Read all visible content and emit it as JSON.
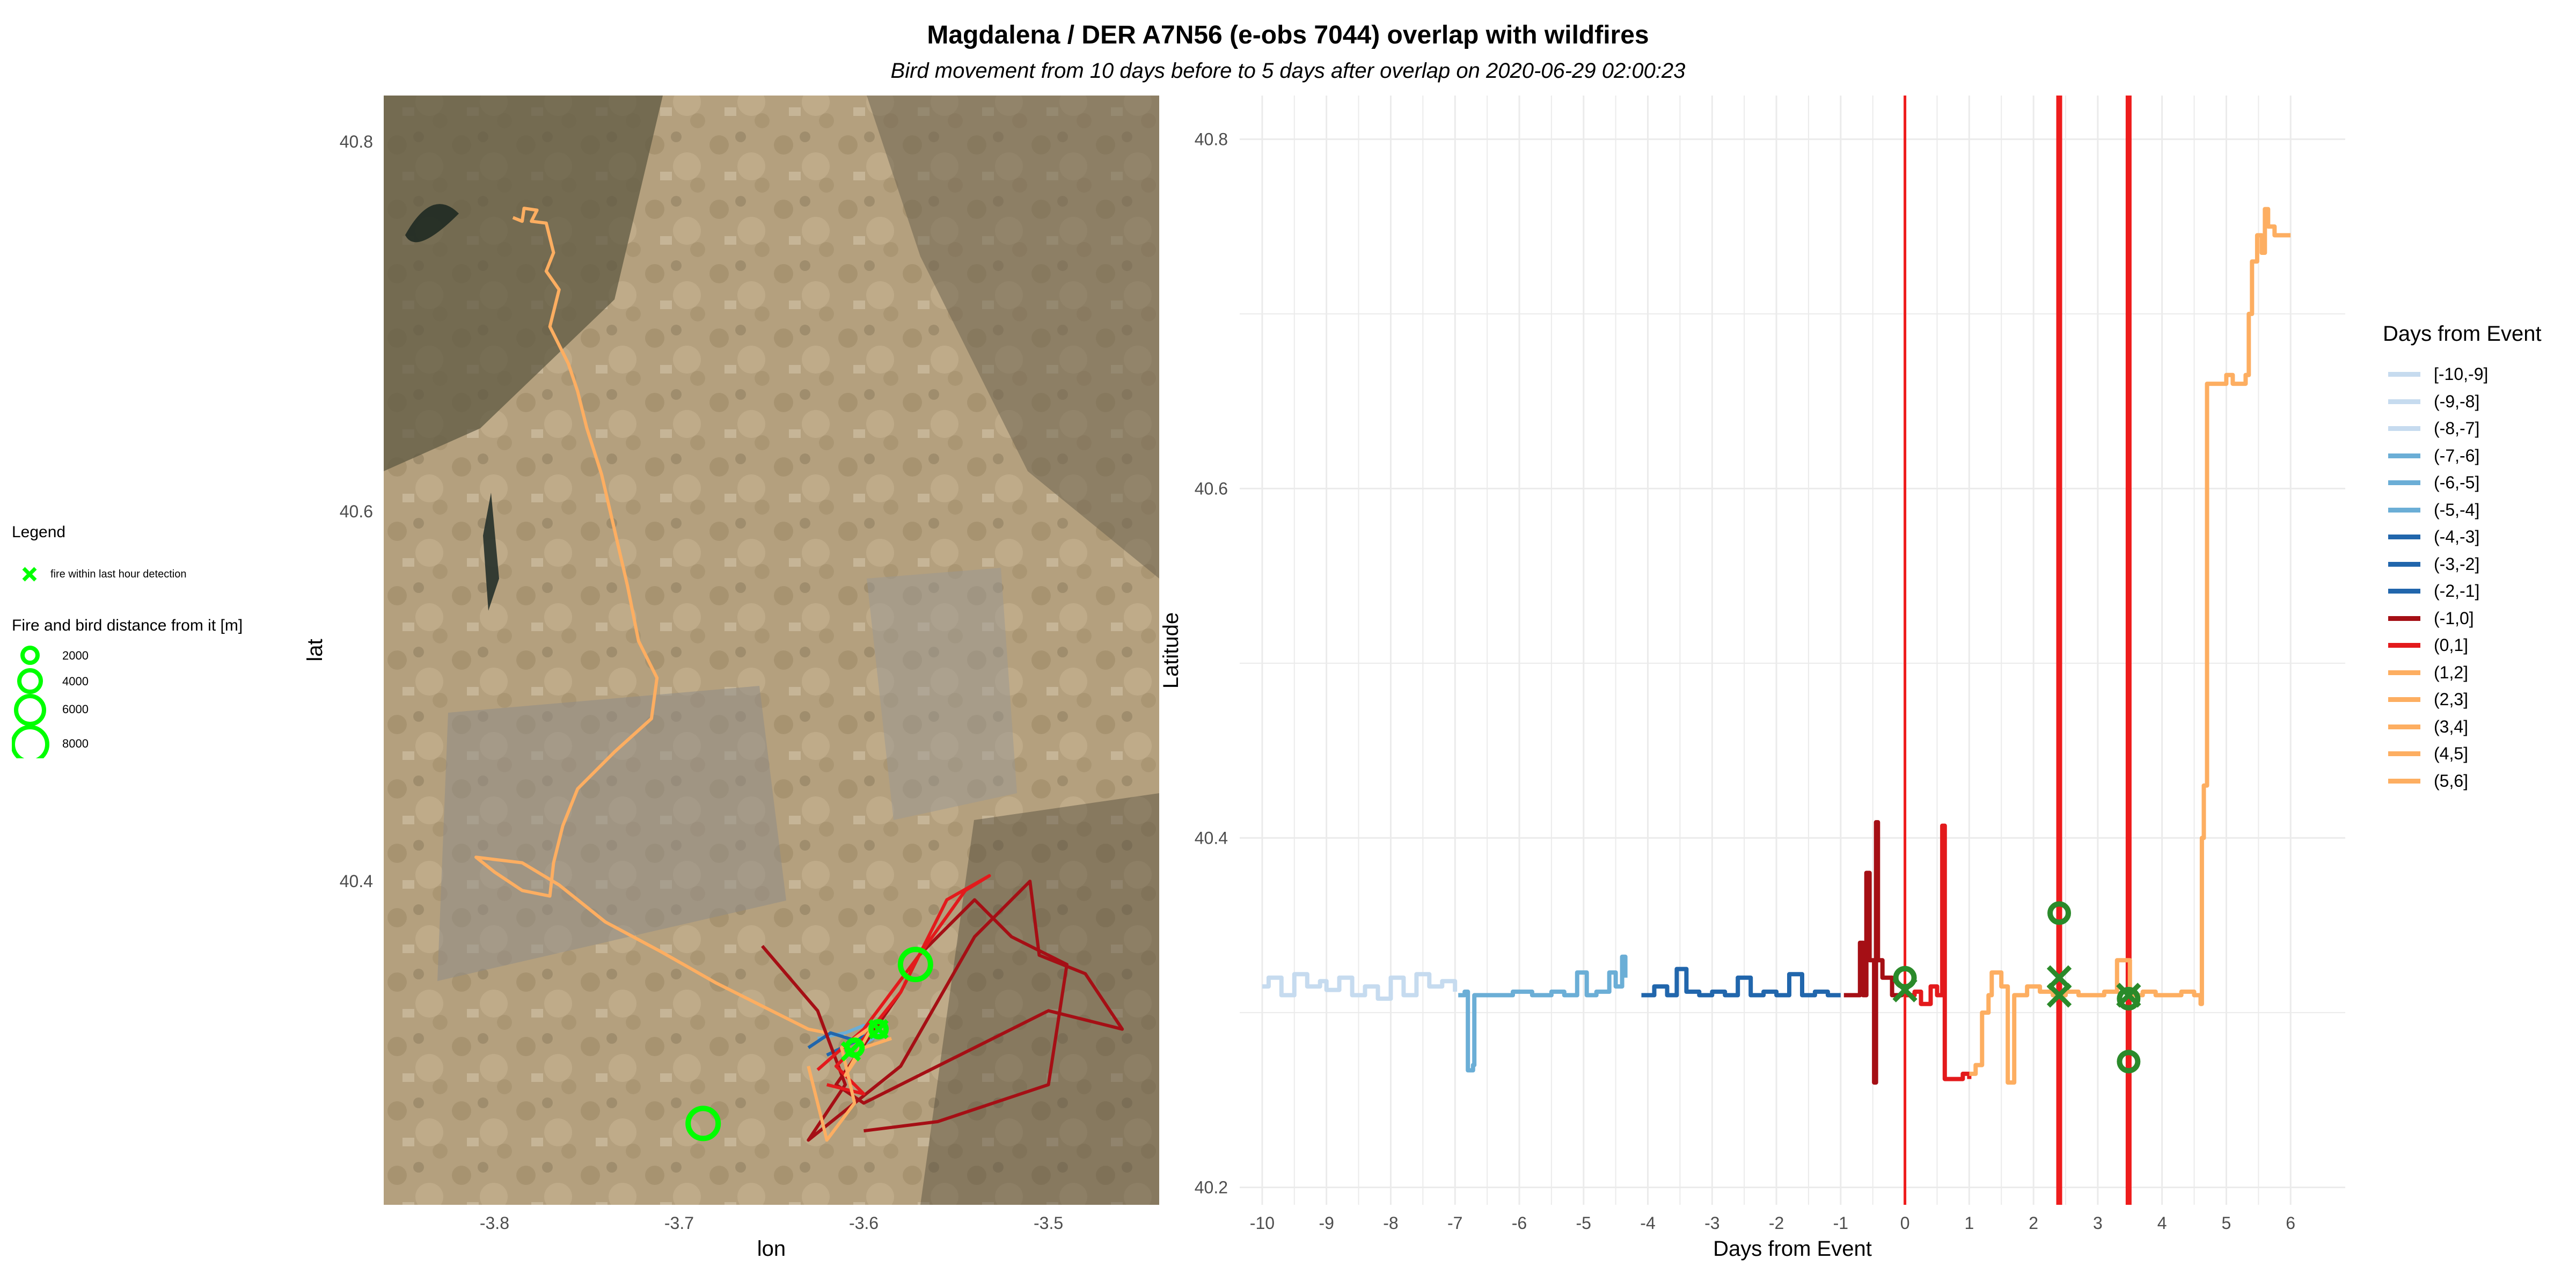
{
  "title": "Magdalena / DER A7N56 (e-obs 7044) overlap with wildfires",
  "subtitle": "Bird movement from 10 days before to 5 days after overlap on 2020-06-29 02:00:23",
  "map_legend": {
    "heading": "Legend",
    "fire_label": "fire within last hour detection",
    "size_title": "Fire and bird distance from it [m]",
    "sizes": [
      "2000",
      "4000",
      "6000",
      "8000"
    ]
  },
  "day_legend": {
    "heading": "Days from Event",
    "items": [
      {
        "label": "[-10,-9]",
        "color": "#c6dbef"
      },
      {
        "label": "(-9,-8]",
        "color": "#c6dbef"
      },
      {
        "label": "(-8,-7]",
        "color": "#c6dbef"
      },
      {
        "label": "(-7,-6]",
        "color": "#6baed6"
      },
      {
        "label": "(-6,-5]",
        "color": "#6baed6"
      },
      {
        "label": "(-5,-4]",
        "color": "#6baed6"
      },
      {
        "label": "(-4,-3]",
        "color": "#2166ac"
      },
      {
        "label": "(-3,-2]",
        "color": "#2166ac"
      },
      {
        "label": "(-2,-1]",
        "color": "#2166ac"
      },
      {
        "label": "(-1,0]",
        "color": "#a50f15"
      },
      {
        "label": "(0,1]",
        "color": "#e31a1c"
      },
      {
        "label": "(1,2]",
        "color": "#fdae61"
      },
      {
        "label": "(2,3]",
        "color": "#fdae61"
      },
      {
        "label": "(3,4]",
        "color": "#fdae61"
      },
      {
        "label": "(4,5]",
        "color": "#fdae61"
      },
      {
        "label": "(5,6]",
        "color": "#fdae61"
      }
    ]
  },
  "chart_data": [
    {
      "type": "scatter",
      "subtype": "map-track",
      "xlabel": "lon",
      "ylabel": "lat",
      "xlim": [
        -3.86,
        -3.44
      ],
      "ylim": [
        40.225,
        40.825
      ],
      "xticks": [
        "-3.8",
        "-3.7",
        "-3.6",
        "-3.5"
      ],
      "yticks": [
        "40.4",
        "40.6",
        "40.8"
      ],
      "background": "satellite imagery",
      "fire_color": "#00ff00",
      "segments": [
        {
          "color": "#fdae61",
          "points": [
            [
              -3.79,
              40.759
            ],
            [
              -3.785,
              40.757
            ],
            [
              -3.784,
              40.764
            ],
            [
              -3.777,
              40.763
            ],
            [
              -3.78,
              40.757
            ],
            [
              -3.772,
              40.756
            ],
            [
              -3.768,
              40.74
            ],
            [
              -3.772,
              40.73
            ],
            [
              -3.765,
              40.72
            ],
            [
              -3.77,
              40.7
            ],
            [
              -3.76,
              40.68
            ],
            [
              -3.755,
              40.665
            ],
            [
              -3.75,
              40.645
            ],
            [
              -3.742,
              40.62
            ],
            [
              -3.735,
              40.59
            ],
            [
              -3.728,
              40.56
            ],
            [
              -3.722,
              40.53
            ],
            [
              -3.712,
              40.51
            ],
            [
              -3.715,
              40.488
            ],
            [
              -3.735,
              40.47
            ],
            [
              -3.755,
              40.45
            ],
            [
              -3.763,
              40.43
            ],
            [
              -3.768,
              40.41
            ],
            [
              -3.77,
              40.392
            ],
            [
              -3.785,
              40.395
            ],
            [
              -3.8,
              40.405
            ],
            [
              -3.81,
              40.413
            ],
            [
              -3.785,
              40.41
            ],
            [
              -3.765,
              40.398
            ],
            [
              -3.74,
              40.378
            ],
            [
              -3.71,
              40.362
            ],
            [
              -3.68,
              40.345
            ],
            [
              -3.65,
              40.33
            ],
            [
              -3.63,
              40.32
            ],
            [
              -3.61,
              40.316
            ]
          ]
        },
        {
          "color": "#6baed6",
          "points": [
            [
              -3.625,
              40.315
            ],
            [
              -3.61,
              40.318
            ],
            [
              -3.6,
              40.322
            ],
            [
              -3.59,
              40.318
            ],
            [
              -3.6,
              40.312
            ]
          ]
        },
        {
          "color": "#2166ac",
          "points": [
            [
              -3.63,
              40.31
            ],
            [
              -3.618,
              40.318
            ],
            [
              -3.605,
              40.314
            ],
            [
              -3.595,
              40.318
            ],
            [
              -3.62,
              40.306
            ]
          ]
        },
        {
          "color": "#a50f15",
          "points": [
            [
              -3.655,
              40.365
            ],
            [
              -3.625,
              40.33
            ],
            [
              -3.61,
              40.29
            ],
            [
              -3.63,
              40.26
            ],
            [
              -3.58,
              40.3
            ],
            [
              -3.54,
              40.37
            ],
            [
              -3.51,
              40.4
            ],
            [
              -3.505,
              40.36
            ],
            [
              -3.48,
              40.35
            ],
            [
              -3.46,
              40.32
            ],
            [
              -3.5,
              40.33
            ],
            [
              -3.55,
              40.305
            ],
            [
              -3.6,
              40.28
            ],
            [
              -3.615,
              40.29
            ],
            [
              -3.58,
              40.34
            ],
            [
              -3.57,
              40.36
            ],
            [
              -3.54,
              40.39
            ],
            [
              -3.52,
              40.37
            ],
            [
              -3.49,
              40.355
            ],
            [
              -3.5,
              40.29
            ],
            [
              -3.56,
              40.27
            ],
            [
              -3.6,
              40.265
            ]
          ]
        },
        {
          "color": "#e31a1c",
          "points": [
            [
              -3.625,
              40.298
            ],
            [
              -3.6,
              40.32
            ],
            [
              -3.57,
              40.36
            ],
            [
              -3.545,
              40.395
            ],
            [
              -3.532,
              40.403
            ],
            [
              -3.555,
              40.39
            ],
            [
              -3.58,
              40.34
            ],
            [
              -3.6,
              40.315
            ],
            [
              -3.615,
              40.3
            ],
            [
              -3.6,
              40.285
            ],
            [
              -3.62,
              40.29
            ]
          ]
        },
        {
          "color": "#fdae61",
          "points": [
            [
              -3.63,
              40.3
            ],
            [
              -3.62,
              40.26
            ],
            [
              -3.605,
              40.28
            ],
            [
              -3.612,
              40.31
            ],
            [
              -3.595,
              40.322
            ],
            [
              -3.61,
              40.295
            ],
            [
              -3.6,
              40.31
            ],
            [
              -3.585,
              40.315
            ]
          ]
        }
      ],
      "fires": [
        {
          "lon": -3.607,
          "lat": 40.308,
          "shape": "x"
        },
        {
          "lon": -3.592,
          "lat": 40.32,
          "shape": "x"
        },
        {
          "lon": -3.572,
          "lat": 40.355,
          "shape": "circle",
          "size": 2
        },
        {
          "lon": -3.687,
          "lat": 40.269,
          "shape": "circle",
          "size": 2
        },
        {
          "lon": -3.605,
          "lat": 40.31,
          "shape": "circle",
          "size": 1
        },
        {
          "lon": -3.592,
          "lat": 40.32,
          "shape": "circle",
          "size": 1
        }
      ]
    },
    {
      "type": "line",
      "xlabel": "Days from Event",
      "ylabel": "Latitude",
      "xlim": [
        -10.35,
        6.85
      ],
      "ylim": [
        40.19,
        40.825
      ],
      "xticks": [
        "-10",
        "-9",
        "-8",
        "-7",
        "-6",
        "-5",
        "-4",
        "-3",
        "-2",
        "-1",
        "0",
        "1",
        "2",
        "3",
        "4",
        "5",
        "6"
      ],
      "yticks": [
        "40.2",
        "40.4",
        "40.6",
        "40.8"
      ],
      "vlines": [
        {
          "x": 0,
          "width": "thin"
        },
        {
          "x": 2.4,
          "width": "thick"
        },
        {
          "x": 3.48,
          "width": "thick"
        }
      ],
      "vline_color": "#ee1c1c",
      "series": [
        {
          "color": "#c6dbef",
          "points": [
            [
              -10,
              40.315
            ],
            [
              -9.9,
              40.32
            ],
            [
              -9.7,
              40.31
            ],
            [
              -9.5,
              40.322
            ],
            [
              -9.3,
              40.315
            ],
            [
              -9.1,
              40.318
            ],
            [
              -9,
              40.313
            ],
            [
              -8.8,
              40.32
            ],
            [
              -8.6,
              40.31
            ],
            [
              -8.4,
              40.315
            ],
            [
              -8.2,
              40.308
            ],
            [
              -8.0,
              40.32
            ],
            [
              -7.8,
              40.31
            ],
            [
              -7.6,
              40.322
            ],
            [
              -7.4,
              40.315
            ],
            [
              -7.2,
              40.318
            ],
            [
              -7.0,
              40.312
            ]
          ]
        },
        {
          "color": "#6baed6",
          "points": [
            [
              -6.95,
              40.31
            ],
            [
              -6.85,
              40.312
            ],
            [
              -6.8,
              40.267
            ],
            [
              -6.72,
              40.27
            ],
            [
              -6.7,
              40.31
            ],
            [
              -6.4,
              40.31
            ],
            [
              -6.1,
              40.312
            ],
            [
              -5.8,
              40.31
            ],
            [
              -5.5,
              40.312
            ],
            [
              -5.3,
              40.31
            ],
            [
              -5.1,
              40.323
            ],
            [
              -4.95,
              40.31
            ],
            [
              -4.8,
              40.312
            ],
            [
              -4.6,
              40.323
            ],
            [
              -4.5,
              40.315
            ],
            [
              -4.4,
              40.332
            ],
            [
              -4.35,
              40.32
            ]
          ]
        },
        {
          "color": "#2166ac",
          "points": [
            [
              -4.1,
              40.31
            ],
            [
              -3.9,
              40.315
            ],
            [
              -3.7,
              40.31
            ],
            [
              -3.55,
              40.325
            ],
            [
              -3.4,
              40.312
            ],
            [
              -3.2,
              40.31
            ],
            [
              -3.0,
              40.312
            ],
            [
              -2.8,
              40.31
            ],
            [
              -2.6,
              40.32
            ],
            [
              -2.4,
              40.31
            ],
            [
              -2.2,
              40.312
            ],
            [
              -2.0,
              40.31
            ],
            [
              -1.8,
              40.322
            ],
            [
              -1.6,
              40.31
            ],
            [
              -1.4,
              40.312
            ],
            [
              -1.2,
              40.31
            ],
            [
              -1.0,
              40.31
            ]
          ]
        },
        {
          "color": "#a50f15",
          "points": [
            [
              -0.95,
              40.31
            ],
            [
              -0.8,
              40.31
            ],
            [
              -0.7,
              40.34
            ],
            [
              -0.65,
              40.31
            ],
            [
              -0.6,
              40.38
            ],
            [
              -0.55,
              40.33
            ],
            [
              -0.48,
              40.26
            ],
            [
              -0.45,
              40.409
            ],
            [
              -0.42,
              40.33
            ],
            [
              -0.35,
              40.32
            ],
            [
              -0.2,
              40.31
            ],
            [
              -0.05,
              40.312
            ]
          ]
        },
        {
          "color": "#e31a1c",
          "points": [
            [
              0,
              40.31
            ],
            [
              0.15,
              40.312
            ],
            [
              0.25,
              40.305
            ],
            [
              0.4,
              40.315
            ],
            [
              0.5,
              40.31
            ],
            [
              0.58,
              40.407
            ],
            [
              0.62,
              40.262
            ],
            [
              0.75,
              40.262
            ],
            [
              0.9,
              40.265
            ],
            [
              1.0,
              40.262
            ]
          ]
        },
        {
          "color": "#fdae61",
          "points": [
            [
              1.0,
              40.265
            ],
            [
              1.1,
              40.27
            ],
            [
              1.2,
              40.3
            ],
            [
              1.3,
              40.31
            ],
            [
              1.35,
              40.323
            ],
            [
              1.5,
              40.315
            ],
            [
              1.6,
              40.26
            ],
            [
              1.7,
              40.31
            ],
            [
              1.9,
              40.315
            ],
            [
              2.1,
              40.312
            ],
            [
              2.3,
              40.31
            ],
            [
              2.5,
              40.312
            ],
            [
              2.7,
              40.31
            ],
            [
              2.9,
              40.31
            ],
            [
              3.1,
              40.312
            ],
            [
              3.3,
              40.33
            ],
            [
              3.5,
              40.31
            ],
            [
              3.7,
              40.312
            ],
            [
              3.9,
              40.31
            ],
            [
              4.1,
              40.31
            ],
            [
              4.3,
              40.312
            ],
            [
              4.5,
              40.31
            ],
            [
              4.6,
              40.305
            ],
            [
              4.62,
              40.4
            ],
            [
              4.65,
              40.43
            ],
            [
              4.7,
              40.66
            ],
            [
              4.9,
              40.66
            ],
            [
              5.0,
              40.665
            ],
            [
              5.1,
              40.66
            ],
            [
              5.3,
              40.665
            ],
            [
              5.35,
              40.7
            ],
            [
              5.4,
              40.73
            ],
            [
              5.48,
              40.745
            ],
            [
              5.55,
              40.735
            ],
            [
              5.6,
              40.76
            ],
            [
              5.65,
              40.75
            ],
            [
              5.75,
              40.745
            ],
            [
              6.0,
              40.745
            ]
          ]
        }
      ],
      "fire_marks": [
        {
          "x": 0,
          "y": 40.313,
          "shape": "x"
        },
        {
          "x": 0,
          "y": 40.32,
          "shape": "circle"
        },
        {
          "x": 2.4,
          "y": 40.357,
          "shape": "circle"
        },
        {
          "x": 2.4,
          "y": 40.32,
          "shape": "x"
        },
        {
          "x": 2.4,
          "y": 40.31,
          "shape": "x"
        },
        {
          "x": 3.48,
          "y": 40.31,
          "shape": "x"
        },
        {
          "x": 3.48,
          "y": 40.308,
          "shape": "circle"
        },
        {
          "x": 3.48,
          "y": 40.272,
          "shape": "circle"
        }
      ],
      "fire_color": "#2a8a2a"
    }
  ]
}
